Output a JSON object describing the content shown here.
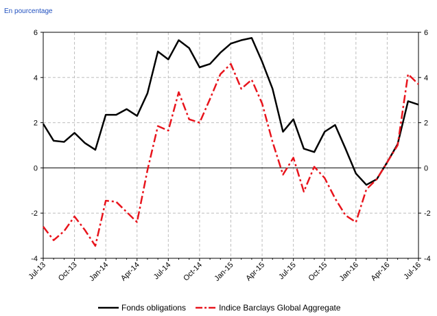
{
  "unit_note": "En pourcentage",
  "chart_data": {
    "type": "line",
    "title": "",
    "xlabel": "",
    "ylabel": "",
    "ylim": [
      -4,
      6
    ],
    "yticks": [
      -4,
      -2,
      0,
      2,
      4,
      6
    ],
    "grid": true,
    "legend_position": "bottom",
    "categories": [
      "Jul-13",
      "Aug-13",
      "Sep-13",
      "Oct-13",
      "Nov-13",
      "Dec-13",
      "Jan-14",
      "Feb-14",
      "Mar-14",
      "Apr-14",
      "May-14",
      "Jun-14",
      "Jul-14",
      "Aug-14",
      "Sep-14",
      "Oct-14",
      "Nov-14",
      "Dec-14",
      "Jan-15",
      "Feb-15",
      "Mar-15",
      "Apr-15",
      "May-15",
      "Jun-15",
      "Jul-15",
      "Aug-15",
      "Sep-15",
      "Oct-15",
      "Nov-15",
      "Dec-15",
      "Jan-16",
      "Feb-16",
      "Mar-16",
      "Apr-16",
      "May-16",
      "Jun-16",
      "Jul-16"
    ],
    "x_tick_labels": [
      "Jul-13",
      "Oct-13",
      "Jan-14",
      "Apr-14",
      "Jul-14",
      "Oct-14",
      "Jan-15",
      "Apr-15",
      "Jul-15",
      "Oct-15",
      "Jan-16",
      "Apr-16",
      "Jul-16"
    ],
    "series": [
      {
        "name": "Fonds obligations",
        "color": "#000000",
        "style": "solid",
        "values": [
          1.95,
          1.2,
          1.15,
          1.55,
          1.1,
          0.8,
          2.35,
          2.35,
          2.6,
          2.3,
          3.3,
          5.15,
          4.8,
          5.65,
          5.3,
          4.45,
          4.6,
          5.1,
          5.5,
          5.65,
          5.75,
          4.7,
          3.5,
          1.6,
          2.15,
          0.85,
          0.7,
          1.6,
          1.9,
          0.85,
          -0.25,
          -0.75,
          -0.5,
          0.25,
          1.05,
          2.95,
          2.8
        ]
      },
      {
        "name": "Indice Barclays Global Aggregate",
        "color": "#e8141c",
        "style": "dashdot",
        "values": [
          -2.6,
          -3.2,
          -2.8,
          -2.15,
          -2.75,
          -3.45,
          -1.45,
          -1.5,
          -1.95,
          -2.4,
          -0.1,
          1.85,
          1.65,
          3.35,
          2.15,
          2.0,
          3.05,
          4.15,
          4.6,
          3.5,
          3.9,
          2.85,
          1.15,
          -0.3,
          0.45,
          -1.05,
          0.05,
          -0.45,
          -1.35,
          -2.1,
          -2.4,
          -0.95,
          -0.5,
          0.25,
          1.0,
          4.15,
          3.7
        ]
      }
    ]
  }
}
